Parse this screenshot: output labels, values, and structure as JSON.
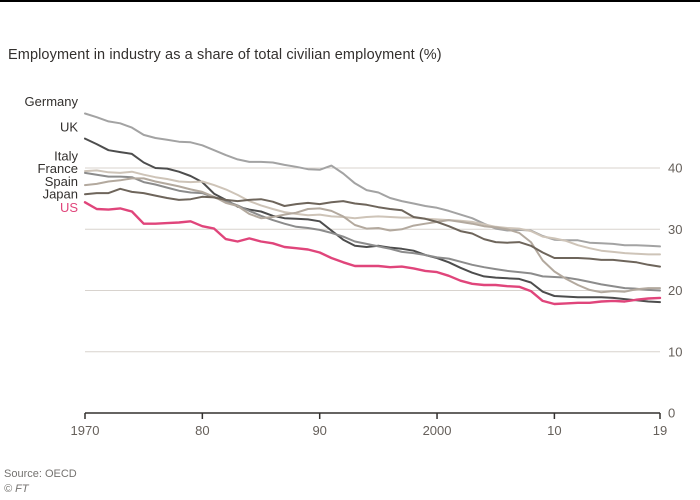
{
  "page": {
    "title": "Employment in industry as a share of total civilian employment (%)",
    "source": "Source: OECD",
    "copyright": "© FT"
  },
  "colors": {
    "background": "#ffffff",
    "title_text": "#33302e",
    "grid": "#d8d3ce",
    "axis": "#33302e",
    "tick_text": "#66605b",
    "highlight_pink": "#e0457b"
  },
  "chart_data": {
    "type": "line",
    "title": "Employment in industry as a share of total civilian employment (%)",
    "xlabel": "",
    "ylabel": "",
    "grid": "horizontal",
    "legend_position": "left-of-lines",
    "xlim": [
      1970,
      2019
    ],
    "ylim": [
      0,
      52
    ],
    "y_ticks": [
      0,
      10,
      20,
      30,
      40
    ],
    "y_tick_labels": [
      "0",
      "10",
      "20",
      "30",
      "40"
    ],
    "x_ticks": [
      1970,
      1980,
      1990,
      2000,
      2010,
      2019
    ],
    "x_tick_labels": [
      "1970",
      "80",
      "90",
      "2000",
      "10",
      "19"
    ],
    "years": [
      1970,
      1971,
      1972,
      1973,
      1974,
      1975,
      1976,
      1977,
      1978,
      1979,
      1980,
      1981,
      1982,
      1983,
      1984,
      1985,
      1986,
      1987,
      1988,
      1989,
      1990,
      1991,
      1992,
      1993,
      1994,
      1995,
      1996,
      1997,
      1998,
      1999,
      2000,
      2001,
      2002,
      2003,
      2004,
      2005,
      2006,
      2007,
      2008,
      2009,
      2010,
      2011,
      2012,
      2013,
      2014,
      2015,
      2016,
      2017,
      2018,
      2019
    ],
    "series": [
      {
        "name": "Germany",
        "color": "#a3a3a3",
        "label_color": "#33302e",
        "label_value": 50.8,
        "values": [
          48.9,
          48.3,
          47.6,
          47.3,
          46.6,
          45.4,
          44.9,
          44.6,
          44.3,
          44.2,
          43.7,
          42.9,
          42.1,
          41.4,
          41.0,
          41.0,
          40.9,
          40.5,
          40.2,
          39.8,
          39.7,
          40.4,
          39.1,
          37.5,
          36.4,
          36.0,
          35.1,
          34.6,
          34.2,
          33.8,
          33.5,
          33.0,
          32.4,
          31.8,
          30.9,
          30.1,
          29.8,
          29.9,
          29.8,
          28.9,
          28.3,
          28.2,
          28.2,
          27.8,
          27.7,
          27.6,
          27.4,
          27.4,
          27.3,
          27.2
        ]
      },
      {
        "name": "UK",
        "color": "#4d4d4d",
        "label_color": "#33302e",
        "label_value": 46.6,
        "values": [
          44.8,
          43.9,
          42.9,
          42.6,
          42.3,
          40.9,
          40.0,
          39.9,
          39.4,
          38.7,
          37.7,
          35.8,
          34.8,
          33.7,
          33.2,
          32.9,
          32.2,
          31.8,
          31.7,
          31.6,
          31.3,
          29.8,
          28.3,
          27.3,
          27.1,
          27.3,
          27.0,
          26.8,
          26.5,
          25.8,
          25.3,
          24.6,
          23.7,
          22.9,
          22.3,
          22.1,
          22.0,
          21.9,
          21.3,
          19.8,
          19.1,
          19.0,
          18.9,
          18.9,
          18.9,
          18.8,
          18.6,
          18.4,
          18.2,
          18.1
        ]
      },
      {
        "name": "Italy",
        "color": "#cec4b8",
        "label_color": "#33302e",
        "label_value": 41.9,
        "values": [
          39.5,
          39.6,
          39.3,
          39.2,
          39.4,
          38.9,
          38.5,
          38.2,
          37.8,
          37.7,
          37.8,
          37.2,
          36.5,
          35.6,
          34.6,
          33.9,
          33.3,
          32.8,
          32.5,
          32.3,
          32.4,
          32.1,
          32.0,
          31.8,
          32.0,
          32.1,
          32.0,
          31.9,
          31.9,
          31.7,
          31.6,
          31.5,
          31.4,
          31.2,
          30.8,
          30.4,
          30.2,
          30.1,
          29.7,
          28.8,
          28.5,
          28.1,
          27.4,
          26.9,
          26.5,
          26.3,
          26.1,
          26.0,
          25.9,
          25.9
        ]
      },
      {
        "name": "France",
        "color": "#8c8c8c",
        "label_color": "#33302e",
        "label_value": 39.8,
        "values": [
          39.2,
          38.9,
          38.6,
          38.6,
          38.5,
          37.7,
          37.3,
          36.8,
          36.3,
          36.0,
          35.9,
          35.2,
          34.6,
          33.9,
          33.0,
          32.2,
          31.5,
          30.9,
          30.4,
          30.2,
          29.9,
          29.4,
          28.8,
          28.0,
          27.6,
          27.2,
          26.8,
          26.3,
          26.1,
          25.8,
          25.4,
          25.2,
          24.7,
          24.2,
          23.8,
          23.5,
          23.2,
          23.0,
          22.8,
          22.3,
          22.2,
          22.1,
          21.8,
          21.4,
          21.0,
          20.7,
          20.4,
          20.3,
          20.1,
          20.0
        ]
      },
      {
        "name": "Spain",
        "color": "#b3a99e",
        "label_color": "#33302e",
        "label_value": 37.7,
        "values": [
          37.2,
          37.4,
          37.8,
          38.0,
          38.3,
          38.3,
          37.8,
          37.4,
          37.0,
          36.5,
          36.1,
          35.3,
          34.3,
          33.8,
          32.5,
          31.8,
          32.0,
          32.4,
          32.7,
          33.3,
          33.4,
          33.0,
          32.1,
          30.7,
          30.1,
          30.2,
          29.8,
          30.0,
          30.6,
          30.9,
          31.2,
          31.5,
          31.2,
          30.9,
          30.5,
          30.3,
          30.0,
          29.4,
          27.9,
          24.9,
          23.1,
          21.9,
          20.9,
          20.1,
          19.7,
          19.9,
          19.8,
          20.2,
          20.4,
          20.4
        ]
      },
      {
        "name": "Japan",
        "color": "#6e655b",
        "label_color": "#33302e",
        "label_value": 35.7,
        "values": [
          35.7,
          35.9,
          35.9,
          36.6,
          36.1,
          35.9,
          35.5,
          35.1,
          34.8,
          34.9,
          35.3,
          35.2,
          34.8,
          34.6,
          34.8,
          34.9,
          34.5,
          33.8,
          34.1,
          34.3,
          34.1,
          34.4,
          34.6,
          34.2,
          34.0,
          33.6,
          33.3,
          33.1,
          32.0,
          31.7,
          31.2,
          30.5,
          29.7,
          29.3,
          28.4,
          27.9,
          27.8,
          27.9,
          27.3,
          26.2,
          25.3,
          25.3,
          25.3,
          25.2,
          25.0,
          25.0,
          24.8,
          24.6,
          24.2,
          23.9
        ]
      },
      {
        "name": "US",
        "color": "#e0457b",
        "label_color": "#e0457b",
        "label_value": 33.5,
        "values": [
          34.4,
          33.3,
          33.2,
          33.4,
          32.9,
          30.9,
          30.9,
          31.0,
          31.1,
          31.3,
          30.5,
          30.1,
          28.4,
          28.0,
          28.5,
          28.0,
          27.7,
          27.1,
          26.9,
          26.7,
          26.2,
          25.3,
          24.6,
          24.0,
          24.0,
          24.0,
          23.8,
          23.9,
          23.6,
          23.2,
          23.0,
          22.4,
          21.6,
          21.1,
          20.9,
          20.9,
          20.7,
          20.6,
          19.9,
          18.3,
          17.8,
          17.9,
          18.0,
          18.0,
          18.2,
          18.3,
          18.2,
          18.5,
          18.7,
          18.8
        ]
      }
    ]
  }
}
